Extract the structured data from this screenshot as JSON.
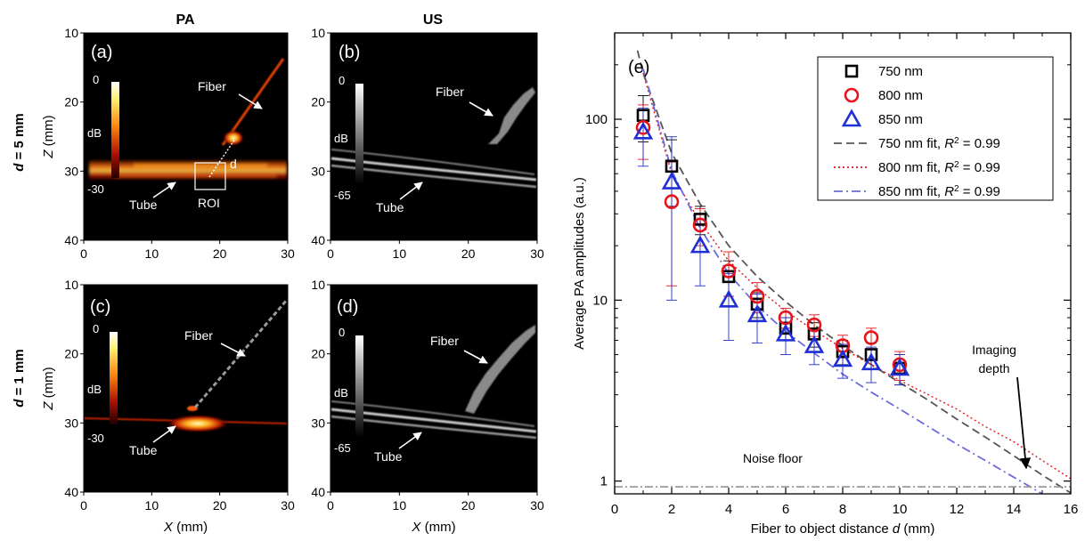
{
  "figure": {
    "col_labels": [
      "PA",
      "US"
    ],
    "row_labels": [
      {
        "sym": "d",
        "rest": " = 5 mm"
      },
      {
        "sym": "d",
        "rest": " = 1 mm"
      }
    ],
    "panels": [
      {
        "tag": "(a)",
        "mode": "PA",
        "fiber": "Fiber",
        "tube": "Tube",
        "cb_top": "0",
        "cb_mid": "dB",
        "cb_bot": "-30",
        "roi": "ROI",
        "d": "d"
      },
      {
        "tag": "(b)",
        "mode": "US",
        "fiber": "Fiber",
        "tube": "Tube",
        "cb_top": "0",
        "cb_mid": "dB",
        "cb_bot": "-65"
      },
      {
        "tag": "(c)",
        "mode": "PA",
        "fiber": "Fiber",
        "tube": "Tube",
        "cb_top": "0",
        "cb_mid": "dB",
        "cb_bot": "-30"
      },
      {
        "tag": "(d)",
        "mode": "US",
        "fiber": "Fiber",
        "tube": "Tube",
        "cb_top": "0",
        "cb_mid": "dB",
        "cb_bot": "-65"
      }
    ],
    "img_xticks": [
      "0",
      "10",
      "20",
      "30"
    ],
    "img_yticks": [
      "10",
      "20",
      "30",
      "40"
    ],
    "img_xlabel": {
      "sym": "X",
      "rest": " (mm)"
    },
    "img_ylabel": {
      "sym": "Z",
      "rest": " (mm)"
    },
    "colors": {
      "pa_hot": "#ffb020",
      "us_gray": "#d0d0d0",
      "c750": "#000000",
      "c800": "#e8141b",
      "c850": "#1f2fd6"
    }
  },
  "chart_data": [
    {
      "type": "image",
      "panel": "(a)",
      "xlabel": "X (mm)",
      "ylabel": "Z (mm)",
      "xlim": [
        0,
        30
      ],
      "ylim": [
        40,
        10
      ],
      "colorbar": [
        0,
        -30
      ]
    },
    {
      "type": "image",
      "panel": "(b)",
      "xlabel": "X (mm)",
      "ylabel": "Z (mm)",
      "xlim": [
        0,
        30
      ],
      "ylim": [
        40,
        10
      ],
      "colorbar": [
        0,
        -65
      ]
    },
    {
      "type": "image",
      "panel": "(c)",
      "xlabel": "X (mm)",
      "ylabel": "Z (mm)",
      "xlim": [
        0,
        30
      ],
      "ylim": [
        40,
        10
      ],
      "colorbar": [
        0,
        -30
      ]
    },
    {
      "type": "image",
      "panel": "(d)",
      "xlabel": "X (mm)",
      "ylabel": "Z (mm)",
      "xlim": [
        0,
        30
      ],
      "ylim": [
        40,
        10
      ],
      "colorbar": [
        0,
        -65
      ]
    },
    {
      "type": "scatter",
      "panel": "(e)",
      "xlabel": "Fiber to object distance d (mm)",
      "ylabel": "Average PA amplitudes (a.u.)",
      "xlim": [
        0,
        16
      ],
      "ylim": [
        0.85,
        300
      ],
      "yscale": "log",
      "xticks": [
        0,
        2,
        4,
        6,
        8,
        10,
        12,
        14,
        16
      ],
      "yticks": [
        1,
        10,
        100
      ],
      "legend_position": "top-right",
      "series": [
        {
          "name": "750 nm",
          "marker": "square",
          "color": "#000000",
          "x": [
            1,
            2,
            3,
            4,
            5,
            6,
            7,
            8,
            9,
            10
          ],
          "y": [
            105,
            55,
            28,
            13.5,
            9.5,
            7,
            6.5,
            5.2,
            5,
            4.2
          ],
          "err": [
            30,
            22,
            5,
            3,
            1.5,
            1,
            1,
            0.8,
            0.8,
            0.8
          ]
        },
        {
          "name": "800 nm",
          "marker": "circle",
          "color": "#e8141b",
          "x": [
            1,
            2,
            3,
            4,
            5,
            6,
            7,
            8,
            9,
            10
          ],
          "y": [
            90,
            35,
            26,
            14.5,
            10.5,
            8,
            7.3,
            5.6,
            6.2,
            4.4
          ],
          "err": [
            30,
            23,
            6,
            4,
            2,
            1,
            1,
            0.8,
            0.8,
            0.8
          ]
        },
        {
          "name": "850 nm",
          "marker": "triangle",
          "color": "#1f2fd6",
          "x": [
            1,
            2,
            3,
            4,
            5,
            6,
            7,
            8,
            9,
            10
          ],
          "y": [
            85,
            45,
            20,
            10,
            8.3,
            6.5,
            5.6,
            4.7,
            4.5,
            4.2
          ],
          "err": [
            30,
            35,
            8,
            4,
            2.5,
            1.5,
            1.2,
            1,
            1,
            0.8
          ]
        },
        {
          "name": "750 nm fit, R2 = 0.99",
          "line": "dashed",
          "color": "#555555",
          "x": [
            0.8,
            1,
            2,
            3,
            4,
            5,
            6,
            7,
            8,
            9,
            10,
            11,
            12,
            13,
            14,
            15,
            16
          ],
          "y": [
            240,
            180,
            65,
            34,
            20,
            13.5,
            9.8,
            7.3,
            5.6,
            4.4,
            3.5,
            2.8,
            2.2,
            1.75,
            1.38,
            1.08,
            0.86
          ]
        },
        {
          "name": "800 nm fit, R2 = 0.99",
          "line": "dotted",
          "color": "#e8141b",
          "x": [
            1,
            2,
            3,
            4,
            5,
            6,
            7,
            8,
            9,
            10,
            11,
            12,
            13,
            14,
            15,
            16
          ],
          "y": [
            180,
            50,
            27,
            16.5,
            11.7,
            8.7,
            6.8,
            5.4,
            4.4,
            3.6,
            3.0,
            2.5,
            2.0,
            1.65,
            1.3,
            1.03
          ]
        },
        {
          "name": "850 nm fit, R2 = 0.99",
          "line": "dashdot",
          "color": "#6b6bdd",
          "x": [
            1,
            2,
            3,
            4,
            5,
            6,
            7,
            8,
            9,
            10,
            11,
            12,
            13,
            14,
            15
          ],
          "y": [
            190,
            52,
            25,
            14,
            9.3,
            6.7,
            5.1,
            3.9,
            3.1,
            2.5,
            2.0,
            1.6,
            1.3,
            1.05,
            0.85
          ]
        },
        {
          "name": "Noise floor",
          "line": "dashdot-gray",
          "color": "#9a9a9a",
          "x": [
            0,
            16
          ],
          "y": [
            0.93,
            0.93
          ]
        }
      ],
      "legend": [
        {
          "label": "750 nm"
        },
        {
          "label": "800 nm"
        },
        {
          "label": "850 nm"
        },
        {
          "pre": "750 nm fit, ",
          "sym": "R",
          "sup": "2",
          "post": " = 0.99"
        },
        {
          "pre": "800 nm fit, ",
          "sym": "R",
          "sup": "2",
          "post": " = 0.99"
        },
        {
          "pre": "850 nm fit, ",
          "sym": "R",
          "sup": "2",
          "post": " = 0.99"
        }
      ],
      "annotations": {
        "panel_tag": "(e)",
        "noise_floor": "Noise floor",
        "imaging_depth": [
          "Imaging",
          "depth"
        ]
      },
      "xlabel_parts": {
        "pre": "Fiber to object distance ",
        "sym": "d",
        "post": " (mm)"
      }
    }
  ]
}
